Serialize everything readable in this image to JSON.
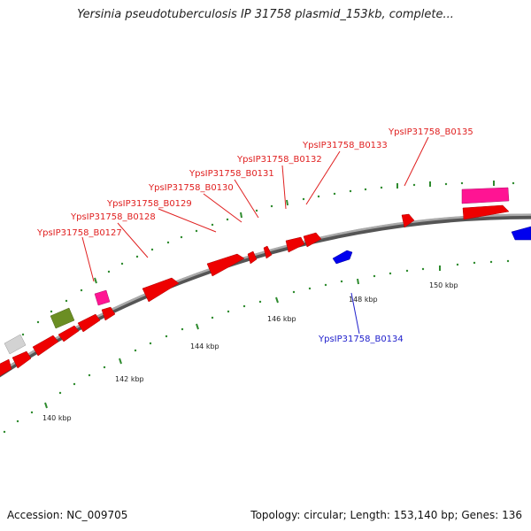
{
  "title": "Yersinia pseudotuberculosis IP 31758 plasmid_153kb, complete...",
  "footer": {
    "accession": "Accession: NC_009705",
    "summary": "Topology: circular; Length: 153,140 bp; Genes: 136"
  },
  "colors": {
    "forward_gene": "#ff0000",
    "reverse_gene": "#0000ff",
    "pink_feature": "#ff1493",
    "green_feature": "#6b8e23",
    "grey_feature": "#d3d3d3",
    "backbone": "#888888",
    "tick": "#2e8b2e"
  },
  "ticks": [
    "140 kbp",
    "142 kbp",
    "144 kbp",
    "146 kbp",
    "148 kbp",
    "150 kbp"
  ],
  "gene_labels": [
    {
      "name": "YpsIP31758_B0127",
      "strand": "forward"
    },
    {
      "name": "YpsIP31758_B0128",
      "strand": "forward"
    },
    {
      "name": "YpsIP31758_B0129",
      "strand": "forward"
    },
    {
      "name": "YpsIP31758_B0130",
      "strand": "forward"
    },
    {
      "name": "YpsIP31758_B0131",
      "strand": "forward"
    },
    {
      "name": "YpsIP31758_B0132",
      "strand": "forward"
    },
    {
      "name": "YpsIP31758_B0133",
      "strand": "forward"
    },
    {
      "name": "YpsIP31758_B0135",
      "strand": "forward"
    },
    {
      "name": "YpsIP31758_B0134",
      "strand": "reverse"
    }
  ]
}
